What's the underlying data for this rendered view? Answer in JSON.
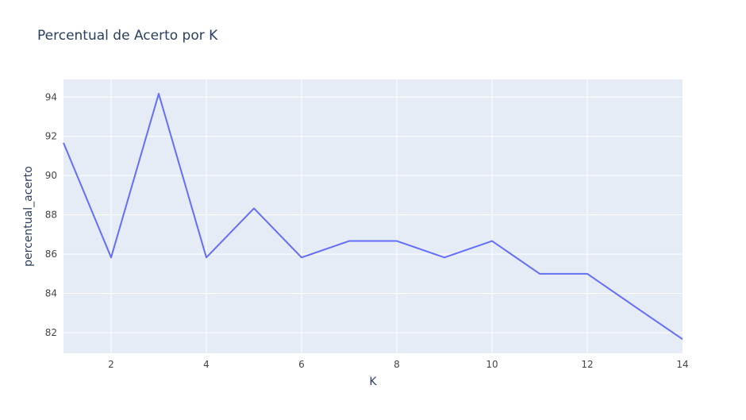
{
  "chart_data": {
    "type": "line",
    "title": "Percentual de Acerto por K",
    "xlabel": "K",
    "ylabel": "percentual_acerto",
    "xlim": [
      1,
      14
    ],
    "ylim": [
      80.95,
      94.9
    ],
    "xticks": [
      2,
      4,
      6,
      8,
      10,
      12,
      14
    ],
    "yticks": [
      82,
      84,
      86,
      88,
      90,
      92,
      94
    ],
    "grid": true,
    "series": [
      {
        "x": [
          1,
          2,
          3,
          4,
          5,
          6,
          7,
          8,
          9,
          10,
          11,
          12,
          13,
          14
        ],
        "y": [
          91.67,
          85.83,
          94.17,
          85.83,
          88.33,
          85.83,
          86.67,
          86.67,
          85.83,
          86.67,
          85.0,
          85.0,
          83.33,
          81.67
        ]
      }
    ],
    "colors": {
      "plot_bg": "#e5ecf6",
      "grid": "#ffffff",
      "line": "#636efa",
      "text": "#2a3f5f",
      "tick_text": "#444444"
    }
  }
}
